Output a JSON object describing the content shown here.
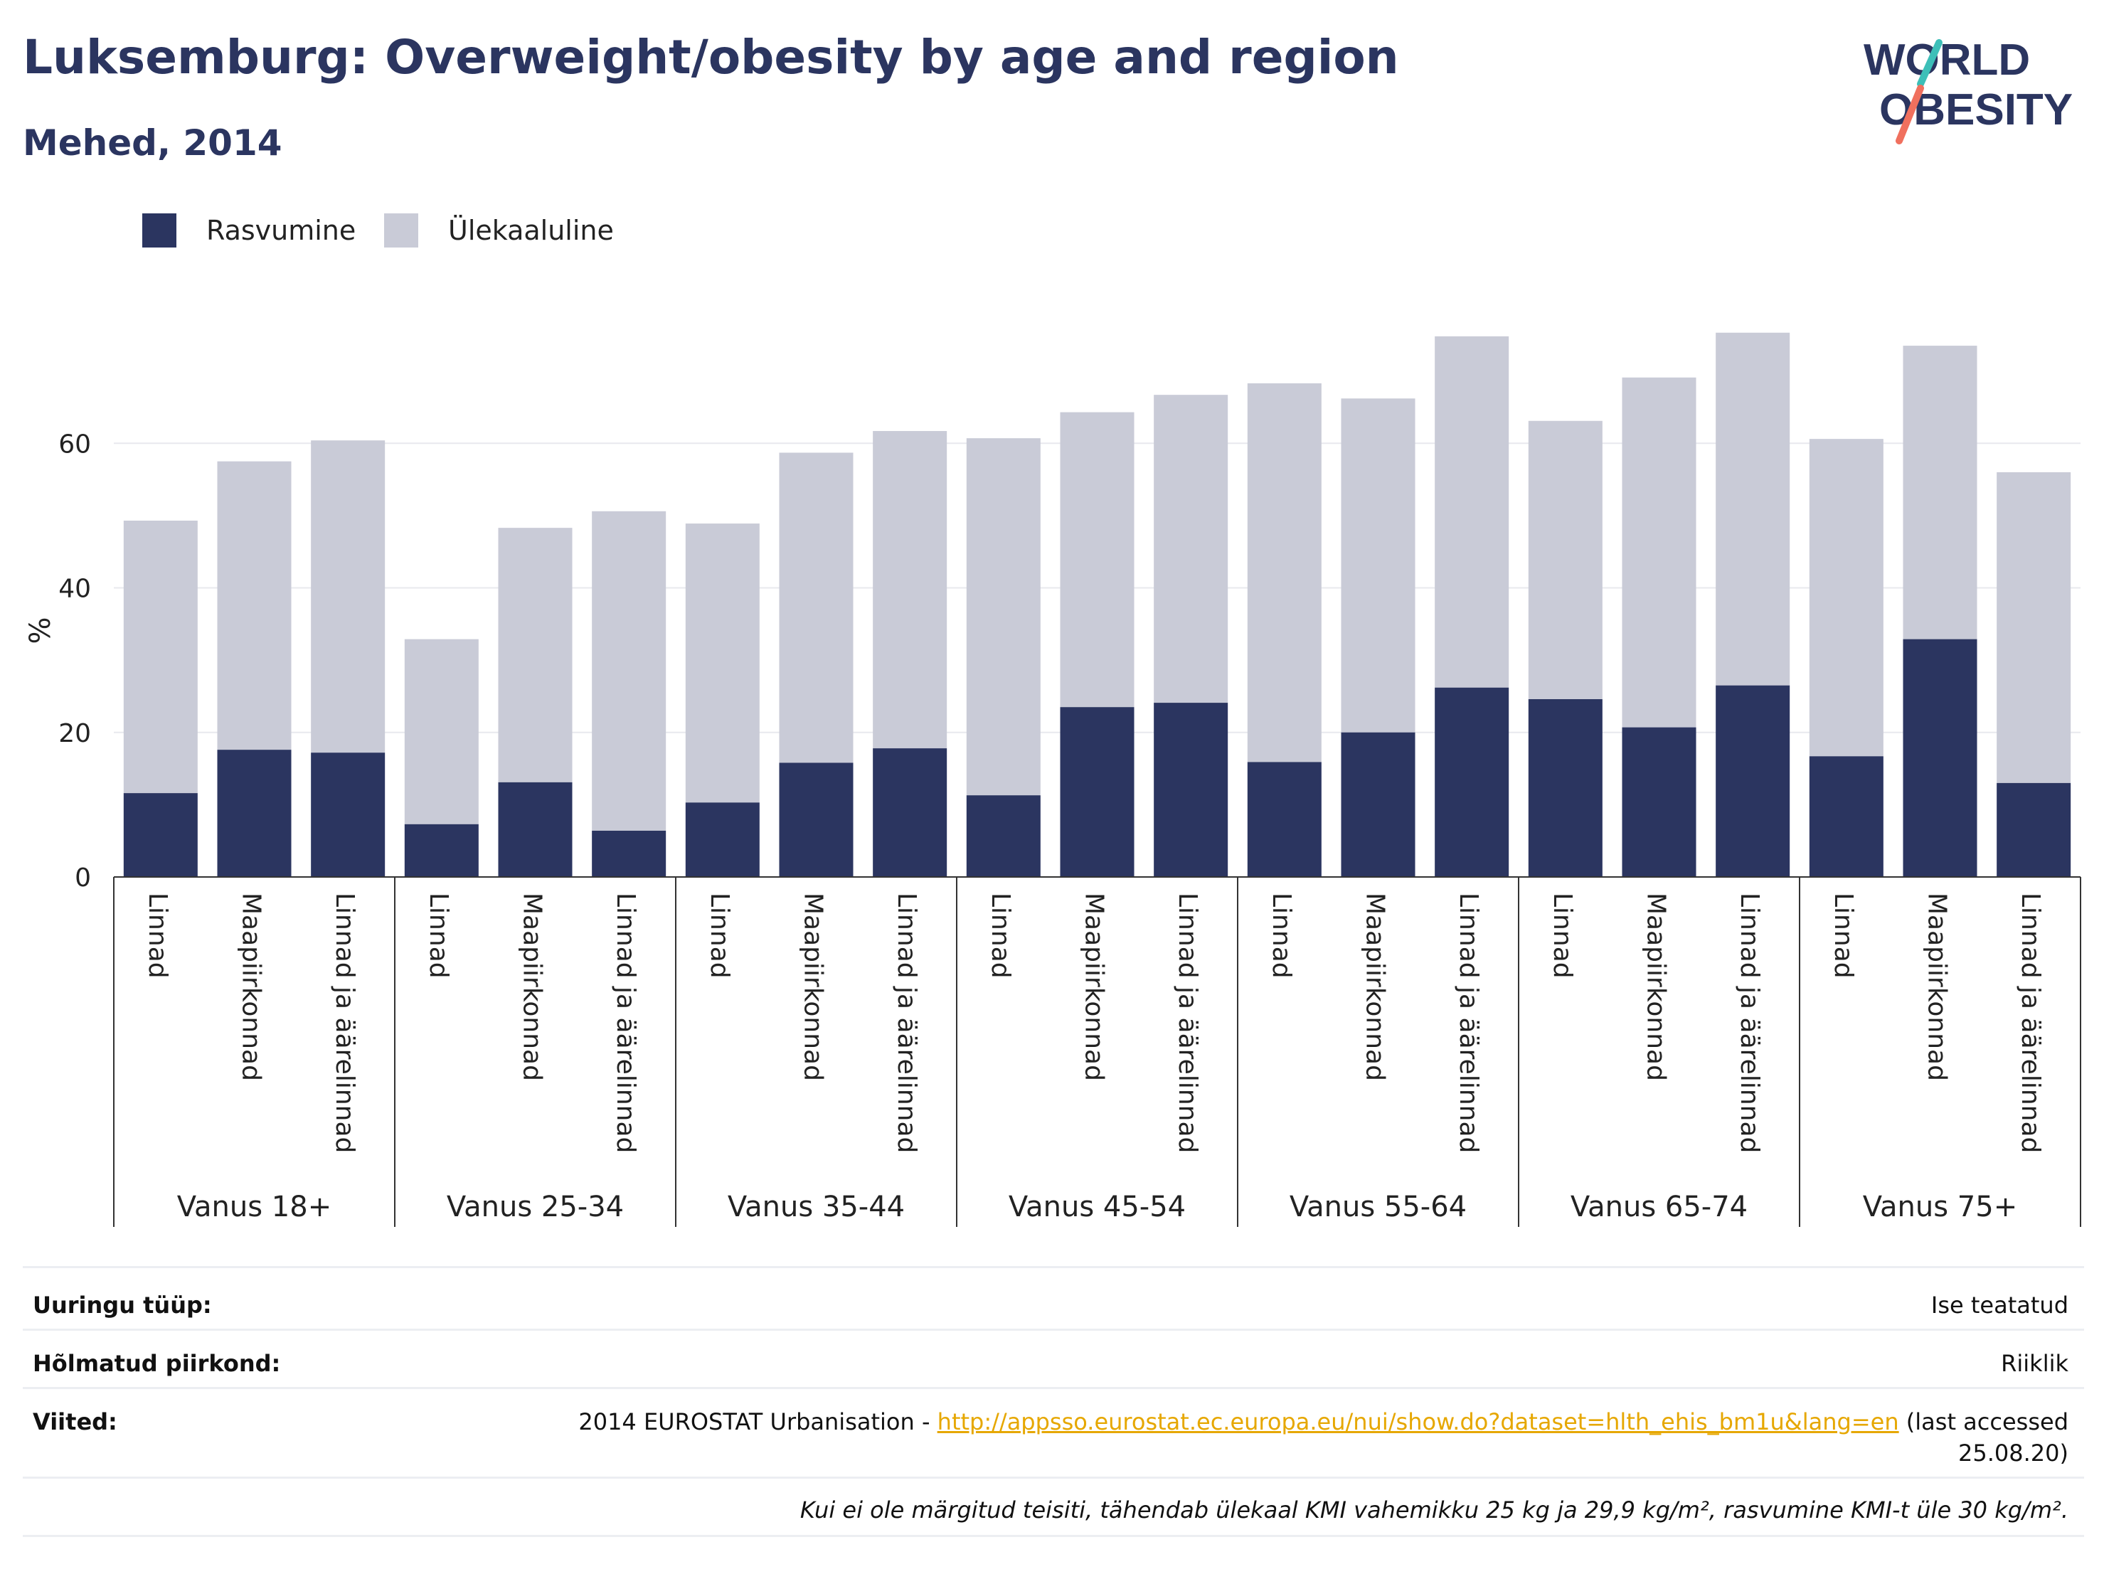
{
  "header": {
    "title": "Luksemburg: Overweight/obesity by age and region",
    "subtitle": "Mehed, 2014"
  },
  "logo": {
    "line1": "WORLD",
    "line2": "OBESITY",
    "colors": {
      "text": "#2b3560",
      "slash_top": "#3dbfb8",
      "slash_bottom": "#f0705e"
    }
  },
  "colors": {
    "obesity": "#2b3560",
    "overweight": "#c9cbd7",
    "grid": "#e8e9ee",
    "axis": "#333333"
  },
  "legend": [
    {
      "key": "obesity",
      "label": "Rasvumine"
    },
    {
      "key": "overweight",
      "label": "Ülekaaluline"
    }
  ],
  "chart_data": {
    "type": "bar",
    "stacked": true,
    "ylabel": "%",
    "ylim": [
      0,
      80
    ],
    "yticks": [
      0,
      20,
      40,
      60
    ],
    "grid": true,
    "legend_position": "top-left",
    "groups": [
      {
        "label": "Vanus 18+",
        "categories": [
          "Linnad",
          "Maapiirkonnad",
          "Linnad ja äärelinnad"
        ]
      },
      {
        "label": "Vanus 25-34",
        "categories": [
          "Linnad",
          "Maapiirkonnad",
          "Linnad ja äärelinnad"
        ]
      },
      {
        "label": "Vanus 35-44",
        "categories": [
          "Linnad",
          "Maapiirkonnad",
          "Linnad ja äärelinnad"
        ]
      },
      {
        "label": "Vanus 45-54",
        "categories": [
          "Linnad",
          "Maapiirkonnad",
          "Linnad ja äärelinnad"
        ]
      },
      {
        "label": "Vanus 55-64",
        "categories": [
          "Linnad",
          "Maapiirkonnad",
          "Linnad ja äärelinnad"
        ]
      },
      {
        "label": "Vanus 65-74",
        "categories": [
          "Linnad",
          "Maapiirkonnad",
          "Linnad ja äärelinnad"
        ]
      },
      {
        "label": "Vanus 75+",
        "categories": [
          "Linnad",
          "Maapiirkonnad",
          "Linnad ja äärelinnad"
        ]
      }
    ],
    "series": [
      {
        "name": "Rasvumine",
        "key": "obesity",
        "values": [
          11.6,
          17.6,
          17.2,
          7.3,
          13.1,
          6.4,
          10.3,
          15.8,
          17.8,
          11.3,
          23.5,
          24.1,
          15.9,
          20.0,
          26.2,
          24.6,
          20.7,
          26.5,
          16.7,
          32.9,
          13.0
        ]
      },
      {
        "name": "Ülekaaluline",
        "key": "overweight",
        "values": [
          37.7,
          39.9,
          43.2,
          25.6,
          35.2,
          44.2,
          38.6,
          42.9,
          43.9,
          49.4,
          40.8,
          42.6,
          52.4,
          46.2,
          48.6,
          38.5,
          48.4,
          48.8,
          43.9,
          40.6,
          43.0
        ]
      }
    ]
  },
  "info": [
    {
      "key": "Uuringu tüüp:",
      "value": "Ise teatatud"
    },
    {
      "key": "Hõlmatud piirkond:",
      "value": "Riiklik"
    },
    {
      "key": "Viited:",
      "value_prefix": "2014 EUROSTAT Urbanisation - ",
      "link": "http://appsso.eurostat.ec.europa.eu/nui/show.do?dataset=hlth_ehis_bm1u&lang=en",
      "value_suffix": " (last accessed",
      "value_line2": "25.08.20)"
    }
  ],
  "footnote": "Kui ei ole märgitud teisiti, tähendab ülekaal KMI vahemikku 25 kg ja 29,9 kg/m², rasvumine KMI-t üle 30 kg/m²."
}
